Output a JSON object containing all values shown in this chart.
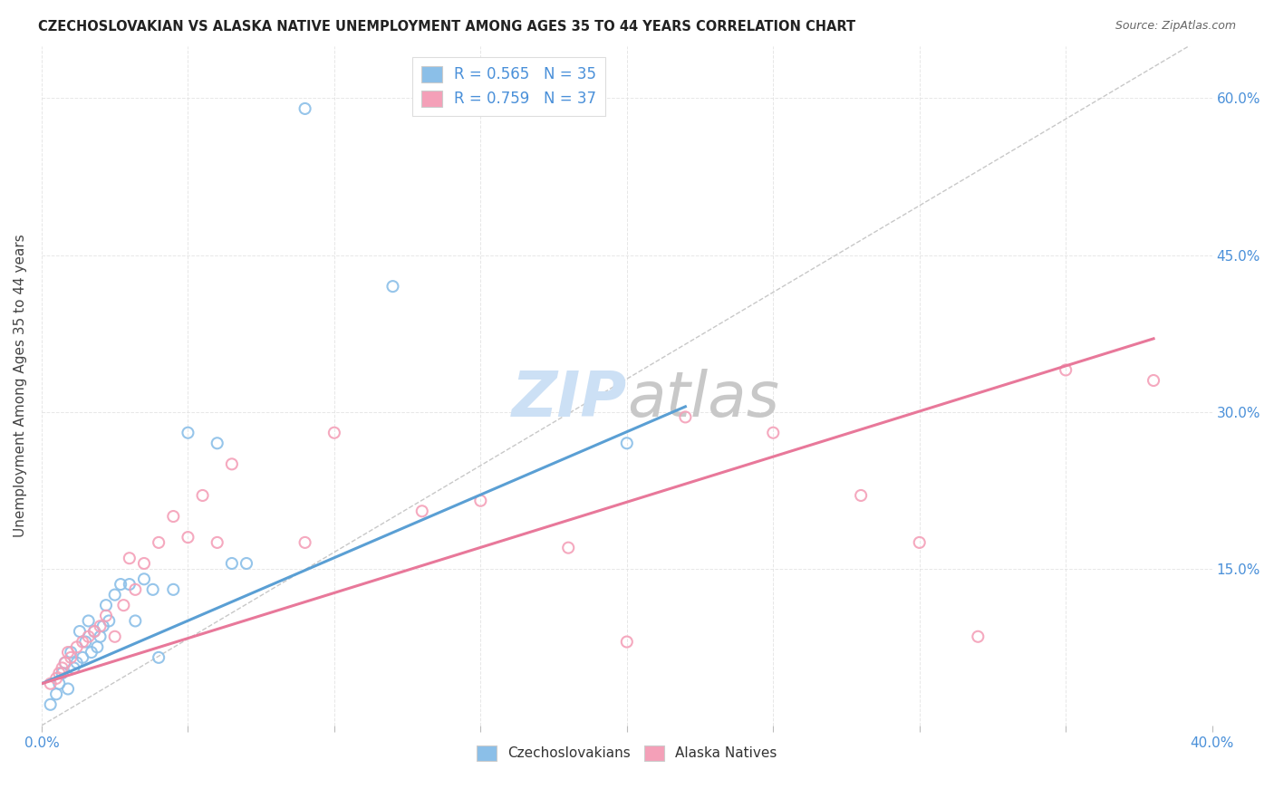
{
  "title": "CZECHOSLOVAKIAN VS ALASKA NATIVE UNEMPLOYMENT AMONG AGES 35 TO 44 YEARS CORRELATION CHART",
  "source": "Source: ZipAtlas.com",
  "ylabel": "Unemployment Among Ages 35 to 44 years",
  "xmin": 0.0,
  "xmax": 0.4,
  "ymin": 0.0,
  "ymax": 0.65,
  "yticks": [
    0.0,
    0.15,
    0.3,
    0.45,
    0.6
  ],
  "ytick_labels": [
    "",
    "15.0%",
    "30.0%",
    "45.0%",
    "60.0%"
  ],
  "xticks": [
    0.0,
    0.05,
    0.1,
    0.15,
    0.2,
    0.25,
    0.3,
    0.35,
    0.4
  ],
  "legend_label1": "Czechoslovakians",
  "legend_label2": "Alaska Natives",
  "blue_color": "#8bbfe8",
  "pink_color": "#f4a0b8",
  "blue_line_color": "#5a9fd4",
  "pink_line_color": "#e8789a",
  "ref_line_color": "#c8c8c8",
  "watermark_zip_color": "#cce0f5",
  "watermark_atlas_color": "#c8c8c8",
  "czech_x": [
    0.003,
    0.005,
    0.006,
    0.007,
    0.008,
    0.009,
    0.01,
    0.011,
    0.012,
    0.013,
    0.014,
    0.015,
    0.016,
    0.017,
    0.018,
    0.019,
    0.02,
    0.021,
    0.022,
    0.023,
    0.025,
    0.027,
    0.03,
    0.032,
    0.035,
    0.038,
    0.04,
    0.045,
    0.05,
    0.06,
    0.065,
    0.07,
    0.09,
    0.12,
    0.2
  ],
  "czech_y": [
    0.02,
    0.03,
    0.04,
    0.05,
    0.06,
    0.035,
    0.07,
    0.055,
    0.06,
    0.09,
    0.065,
    0.08,
    0.1,
    0.07,
    0.09,
    0.075,
    0.085,
    0.095,
    0.115,
    0.1,
    0.125,
    0.135,
    0.135,
    0.1,
    0.14,
    0.13,
    0.065,
    0.13,
    0.28,
    0.27,
    0.155,
    0.155,
    0.59,
    0.42,
    0.27
  ],
  "alaska_x": [
    0.003,
    0.005,
    0.006,
    0.007,
    0.008,
    0.009,
    0.01,
    0.012,
    0.014,
    0.016,
    0.018,
    0.02,
    0.022,
    0.025,
    0.028,
    0.03,
    0.032,
    0.035,
    0.04,
    0.045,
    0.05,
    0.055,
    0.06,
    0.065,
    0.09,
    0.1,
    0.13,
    0.15,
    0.18,
    0.2,
    0.22,
    0.25,
    0.28,
    0.3,
    0.32,
    0.35,
    0.38
  ],
  "alaska_y": [
    0.04,
    0.045,
    0.05,
    0.055,
    0.06,
    0.07,
    0.065,
    0.075,
    0.08,
    0.085,
    0.09,
    0.095,
    0.105,
    0.085,
    0.115,
    0.16,
    0.13,
    0.155,
    0.175,
    0.2,
    0.18,
    0.22,
    0.175,
    0.25,
    0.175,
    0.28,
    0.205,
    0.215,
    0.17,
    0.08,
    0.295,
    0.28,
    0.22,
    0.175,
    0.085,
    0.34,
    0.33
  ],
  "blue_line_x0": 0.0,
  "blue_line_y0": 0.04,
  "blue_line_x1": 0.22,
  "blue_line_y1": 0.305,
  "pink_line_x0": 0.0,
  "pink_line_y0": 0.04,
  "pink_line_x1": 0.38,
  "pink_line_y1": 0.37
}
